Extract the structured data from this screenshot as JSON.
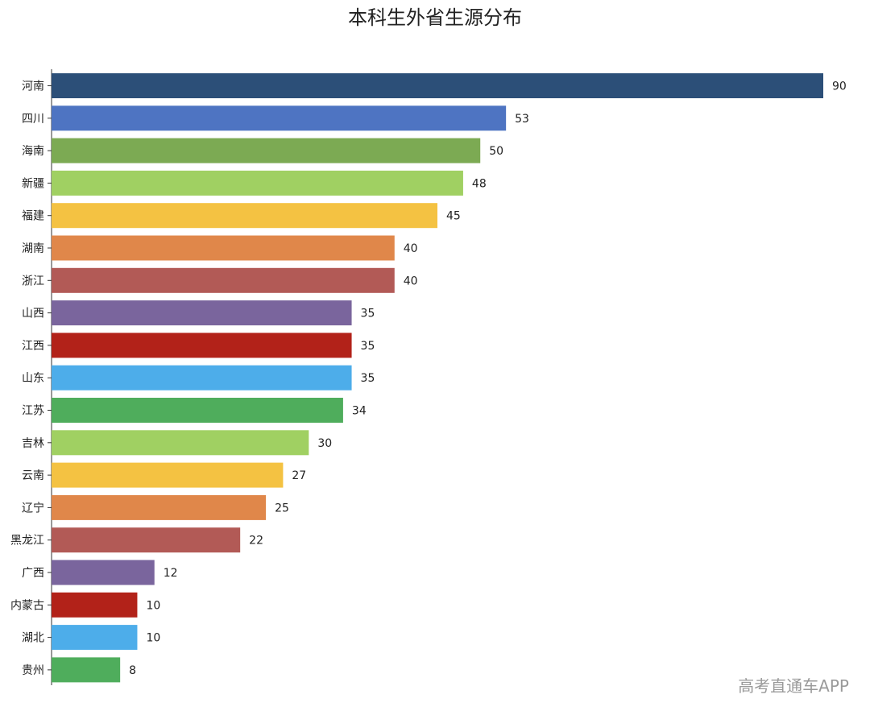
{
  "chart_data": {
    "type": "bar",
    "orientation": "horizontal",
    "title": "本科生外省生源分布",
    "categories": [
      "河南",
      "四川",
      "海南",
      "新疆",
      "福建",
      "湖南",
      "浙江",
      "山西",
      "江西",
      "山东",
      "江苏",
      "吉林",
      "云南",
      "辽宁",
      "黑龙江",
      "广西",
      "内蒙古",
      "湖北",
      "贵州"
    ],
    "values": [
      90,
      53,
      50,
      48,
      45,
      40,
      40,
      35,
      35,
      35,
      34,
      30,
      27,
      25,
      22,
      12,
      10,
      10,
      8
    ],
    "colors": [
      "#2c4f78",
      "#4e74c2",
      "#7caa53",
      "#a0d062",
      "#f4c242",
      "#e0874a",
      "#b25a56",
      "#7a659d",
      "#b22219",
      "#4dadea",
      "#4fad5c",
      "#a0d062",
      "#f4c242",
      "#e0874a",
      "#b25a56",
      "#7a659d",
      "#b22219",
      "#4dadea",
      "#4fad5c"
    ],
    "xlim": [
      0,
      90
    ],
    "grid": false,
    "legend": "none"
  },
  "watermark": "高考直通车APP"
}
